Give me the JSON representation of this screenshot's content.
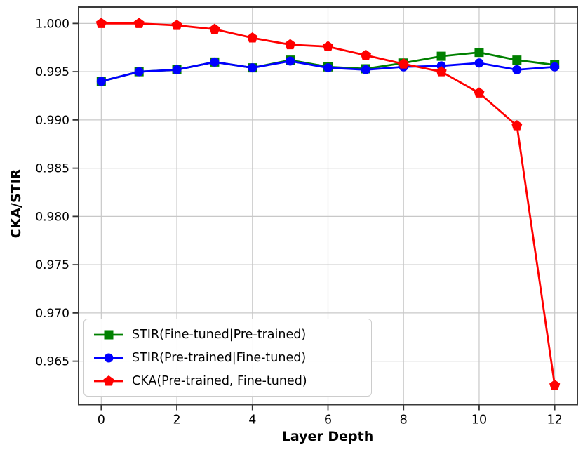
{
  "chart_data": {
    "type": "line",
    "title": "",
    "xlabel": "Layer Depth",
    "ylabel": "CKA/STIR",
    "x": [
      0,
      1,
      2,
      3,
      4,
      5,
      6,
      7,
      8,
      9,
      10,
      11,
      12
    ],
    "series": [
      {
        "name": "STIR(Fine-tuned|Pre-trained)",
        "color": "#008000",
        "marker": "square",
        "values": [
          0.994,
          0.995,
          0.9952,
          0.996,
          0.9954,
          0.9962,
          0.9955,
          0.9953,
          0.9959,
          0.9966,
          0.997,
          0.9962,
          0.9957
        ]
      },
      {
        "name": "STIR(Pre-trained|Fine-tuned)",
        "color": "#0000ff",
        "marker": "circle",
        "values": [
          0.994,
          0.995,
          0.9952,
          0.996,
          0.9954,
          0.9961,
          0.9954,
          0.9952,
          0.9955,
          0.9956,
          0.9959,
          0.9952,
          0.9955
        ]
      },
      {
        "name": "CKA(Pre-trained, Fine-tuned)",
        "color": "#ff0000",
        "marker": "pentagon",
        "values": [
          1.0,
          1.0,
          0.9998,
          0.9994,
          0.9985,
          0.9978,
          0.9976,
          0.9967,
          0.9958,
          0.995,
          0.9928,
          0.9894,
          0.9625
        ]
      }
    ],
    "xlim": [
      -0.6,
      12.6
    ],
    "ylim": [
      0.9605,
      1.0017
    ],
    "xticks": [
      0,
      2,
      4,
      6,
      8,
      10,
      12
    ],
    "xtick_labels": [
      "0",
      "2",
      "4",
      "6",
      "8",
      "10",
      "12"
    ],
    "yticks": [
      1.0,
      0.995,
      0.99,
      0.985,
      0.98,
      0.975,
      0.97,
      0.965
    ],
    "ytick_labels": [
      "1.000",
      "0.995",
      "0.990",
      "0.985",
      "0.980",
      "0.975",
      "0.970",
      "0.965"
    ],
    "grid": true,
    "legend_position": "lower-left",
    "colors": {
      "grid": "#c8c8c8",
      "spine": "#3a3a3a",
      "tick": "#333333",
      "text": "#000000",
      "background": "#ffffff"
    }
  }
}
